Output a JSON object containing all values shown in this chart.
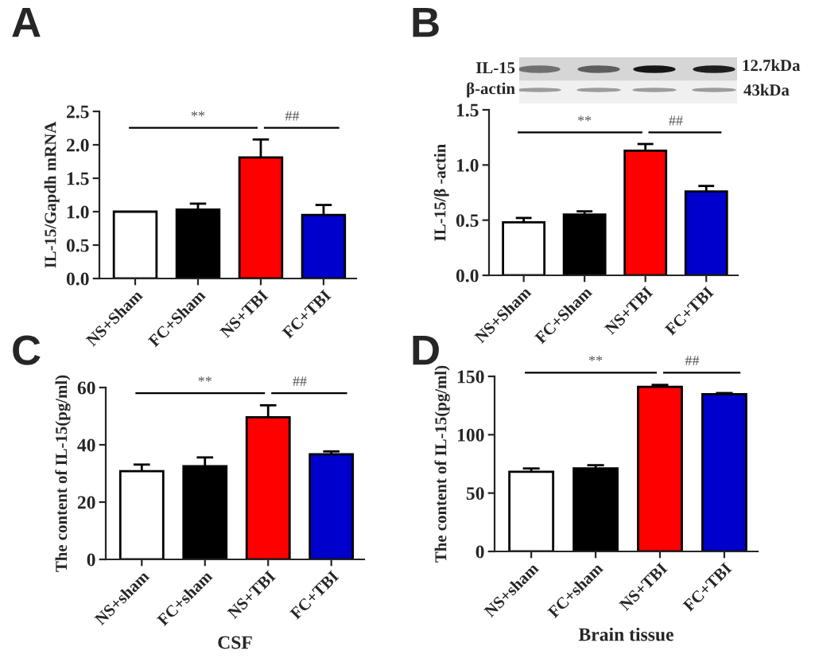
{
  "chart_data": [
    {
      "type": "bar",
      "title": "A",
      "ylabel": "IL-15/Gapdh mRNA",
      "categories": [
        "NS+Sham",
        "FC+Sham",
        "NS+TBI",
        "FC+TBI"
      ],
      "values": [
        1.0,
        1.03,
        1.81,
        0.95
      ],
      "colors": [
        "#ffffff",
        "#000000",
        "#ff0000",
        "#0000cc"
      ],
      "errors": [
        null,
        [
          1.03,
          1.12
        ],
        [
          1.81,
          2.08
        ],
        [
          0.95,
          1.1
        ]
      ],
      "ylim": [
        0,
        2.5
      ],
      "yticks": [
        {
          "value": 0,
          "label": "0.0"
        },
        {
          "value": 0.5,
          "label": "0.5"
        },
        {
          "value": 1,
          "label": "1.0"
        },
        {
          "value": 1.5,
          "label": "1.5"
        },
        {
          "value": 2,
          "label": "2.0"
        },
        {
          "value": 2.5,
          "label": "2.5"
        }
      ],
      "annotations": [
        "**",
        "##"
      ]
    },
    {
      "type": "bar",
      "title": "B",
      "ylabel": "IL-15/β -actin",
      "categories": [
        "NS+Sham",
        "FC+Sham",
        "NS+TBI",
        "FC+TBI"
      ],
      "values": [
        0.48,
        0.55,
        1.13,
        0.76
      ],
      "colors": [
        "#ffffff",
        "#000000",
        "#ff0000",
        "#0000cc"
      ],
      "errors": [
        [
          0.48,
          0.52
        ],
        [
          0.55,
          0.58
        ],
        [
          1.13,
          1.19
        ],
        [
          0.76,
          0.81
        ]
      ],
      "ylim": [
        0,
        1.5
      ],
      "yticks": [
        {
          "value": 0,
          "label": "0.0"
        },
        {
          "value": 0.5,
          "label": "0.5"
        },
        {
          "value": 1,
          "label": "1.0"
        },
        {
          "value": 1.5,
          "label": "1.5"
        }
      ],
      "annotations": [
        "**",
        "##",
        "IL-15",
        "β-actin",
        "12.7kDa",
        "43kDa"
      ]
    },
    {
      "type": "bar",
      "title": "C",
      "xlabel": "CSF",
      "ylabel": "The content of IL-15(pg/ml)",
      "categories": [
        "NS+sham",
        "FC+sham",
        "NS+TBI",
        "FC+TBI"
      ],
      "values": [
        30.8,
        32.5,
        49.6,
        36.7
      ],
      "colors": [
        "#ffffff",
        "#000000",
        "#ff0000",
        "#0000cc"
      ],
      "errors": [
        [
          30.8,
          33.1
        ],
        [
          32.5,
          35.6
        ],
        [
          49.6,
          53.8
        ],
        [
          36.7,
          37.7
        ]
      ],
      "ylim": [
        0,
        60
      ],
      "yticks": [
        0,
        20,
        40,
        60
      ],
      "annotations": [
        "**",
        "##"
      ]
    },
    {
      "type": "bar",
      "title": "D",
      "xlabel": "Brain tissue",
      "ylabel": "The content of IL-15(pg/ml)",
      "categories": [
        "NS+sham",
        "FC+sham",
        "NS+TBI",
        "FC+TBI"
      ],
      "values": [
        68.2,
        71.1,
        141.1,
        134.8
      ],
      "colors": [
        "#ffffff",
        "#000000",
        "#ff0000",
        "#0000cc"
      ],
      "errors": [
        [
          68.2,
          71.1
        ],
        [
          71.1,
          73.9
        ],
        [
          141.1,
          142.7
        ],
        [
          134.8,
          135.7
        ]
      ],
      "ylim": [
        0,
        150
      ],
      "yticks": [
        0,
        50,
        100,
        150
      ],
      "annotations": [
        "**",
        "##"
      ]
    }
  ]
}
